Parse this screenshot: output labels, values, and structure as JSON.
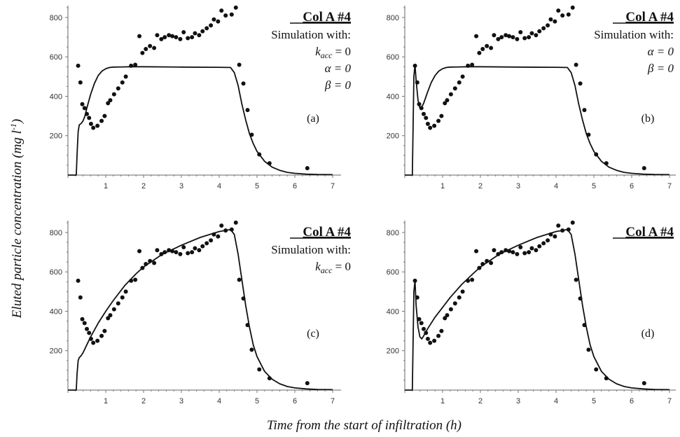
{
  "figure": {
    "xlabel": "Time from the start of infiltration (h)",
    "ylabel_main": "Eluted particle concentration (mg l",
    "ylabel_sup": "-1",
    "ylabel_close": ")"
  },
  "chart_data": [
    {
      "type": "scatter",
      "panel_label": "(a)",
      "title": "Col A #4",
      "annotations": [
        "Simulation with:",
        "k_acc = 0",
        "α = 0",
        "β = 0"
      ],
      "x_ticks": [
        1,
        2,
        3,
        4,
        5,
        6,
        7
      ],
      "y_ticks": [
        200,
        400,
        600,
        800
      ],
      "xlim": [
        -0.1,
        7.2
      ],
      "ylim": [
        0,
        870
      ],
      "series": [
        {
          "role": "observed",
          "x": [
            0.27,
            0.33,
            0.38,
            0.44,
            0.5,
            0.56,
            0.61,
            0.67,
            0.78,
            0.89,
            0.97,
            1.06,
            1.12,
            1.22,
            1.33,
            1.44,
            1.53,
            1.67,
            1.78,
            1.89,
            1.97,
            2.06,
            2.17,
            2.28,
            2.36,
            2.47,
            2.56,
            2.67,
            2.76,
            2.86,
            2.97,
            3.06,
            3.17,
            3.28,
            3.36,
            3.47,
            3.56,
            3.67,
            3.78,
            3.86,
            3.97,
            4.06,
            4.17,
            4.33,
            4.44,
            4.53,
            4.64,
            4.75,
            4.86,
            5.06,
            5.33,
            6.33
          ],
          "y": [
            555,
            470,
            360,
            340,
            310,
            290,
            260,
            240,
            250,
            275,
            300,
            365,
            380,
            410,
            440,
            470,
            500,
            555,
            560,
            705,
            620,
            640,
            655,
            645,
            710,
            690,
            700,
            710,
            705,
            700,
            690,
            725,
            695,
            700,
            720,
            710,
            730,
            745,
            760,
            790,
            780,
            835,
            810,
            815,
            850,
            560,
            465,
            330,
            205,
            105,
            60,
            35
          ]
        },
        {
          "role": "simulated",
          "x": [
            0,
            0.22,
            0.24,
            0.27,
            0.3,
            0.35,
            0.4,
            0.45,
            0.5,
            0.6,
            0.7,
            0.8,
            0.9,
            1.0,
            1.1,
            1.2,
            1.4,
            1.7,
            2.0,
            3.0,
            4.0,
            4.3,
            4.4,
            4.5,
            4.6,
            4.7,
            4.8,
            4.9,
            5.0,
            5.2,
            5.4,
            5.6,
            5.8,
            6.0,
            6.3,
            6.6,
            7.0
          ],
          "y": [
            0,
            0,
            100,
            220,
            255,
            262,
            275,
            300,
            340,
            410,
            465,
            505,
            528,
            540,
            546,
            548,
            549,
            550,
            550,
            548,
            547,
            546,
            520,
            455,
            360,
            280,
            210,
            160,
            120,
            70,
            40,
            24,
            14,
            9,
            5,
            3,
            2
          ]
        }
      ]
    },
    {
      "type": "scatter",
      "panel_label": "(b)",
      "title": "Col A #4",
      "annotations": [
        "Simulation with:",
        "α = 0",
        "β = 0"
      ],
      "x_ticks": [
        1,
        2,
        3,
        4,
        5,
        6,
        7
      ],
      "y_ticks": [
        200,
        400,
        600,
        800
      ],
      "xlim": [
        -0.1,
        7.2
      ],
      "ylim": [
        0,
        870
      ],
      "series": [
        {
          "role": "observed",
          "x": [
            0.27,
            0.33,
            0.38,
            0.44,
            0.5,
            0.56,
            0.61,
            0.67,
            0.78,
            0.89,
            0.97,
            1.06,
            1.12,
            1.22,
            1.33,
            1.44,
            1.53,
            1.67,
            1.78,
            1.89,
            1.97,
            2.06,
            2.17,
            2.28,
            2.36,
            2.47,
            2.56,
            2.67,
            2.76,
            2.86,
            2.97,
            3.06,
            3.17,
            3.28,
            3.36,
            3.47,
            3.56,
            3.67,
            3.78,
            3.86,
            3.97,
            4.06,
            4.17,
            4.33,
            4.44,
            4.53,
            4.64,
            4.75,
            4.86,
            5.06,
            5.33,
            6.33
          ],
          "y": [
            555,
            470,
            360,
            340,
            310,
            290,
            260,
            240,
            250,
            275,
            300,
            365,
            380,
            410,
            440,
            470,
            500,
            555,
            560,
            705,
            620,
            640,
            655,
            645,
            710,
            690,
            700,
            710,
            705,
            700,
            690,
            725,
            695,
            700,
            720,
            710,
            730,
            745,
            760,
            790,
            780,
            835,
            810,
            815,
            850,
            560,
            465,
            330,
            205,
            105,
            60,
            35
          ]
        },
        {
          "role": "simulated",
          "x": [
            0,
            0.2,
            0.22,
            0.24,
            0.27,
            0.3,
            0.35,
            0.4,
            0.45,
            0.5,
            0.6,
            0.7,
            0.8,
            0.9,
            1.0,
            1.1,
            1.2,
            1.4,
            1.7,
            2.0,
            3.0,
            4.0,
            4.3,
            4.4,
            4.5,
            4.6,
            4.7,
            4.8,
            4.9,
            5.0,
            5.2,
            5.4,
            5.6,
            5.8,
            6.0,
            6.3,
            6.6,
            7.0
          ],
          "y": [
            0,
            0,
            250,
            500,
            560,
            480,
            380,
            340,
            345,
            365,
            420,
            470,
            505,
            528,
            540,
            546,
            548,
            549,
            550,
            550,
            548,
            547,
            546,
            520,
            455,
            360,
            280,
            210,
            160,
            120,
            70,
            40,
            24,
            14,
            9,
            5,
            3,
            2
          ]
        }
      ]
    },
    {
      "type": "scatter",
      "panel_label": "(c)",
      "title": "Col A #4",
      "annotations": [
        "Simulation with:",
        "k_acc = 0"
      ],
      "x_ticks": [
        1,
        2,
        3,
        4,
        5,
        6,
        7
      ],
      "y_ticks": [
        200,
        400,
        600,
        800
      ],
      "xlim": [
        -0.1,
        7.2
      ],
      "ylim": [
        0,
        870
      ],
      "series": [
        {
          "role": "observed",
          "x": [
            0.27,
            0.33,
            0.38,
            0.44,
            0.5,
            0.56,
            0.61,
            0.67,
            0.78,
            0.89,
            0.97,
            1.06,
            1.12,
            1.22,
            1.33,
            1.44,
            1.53,
            1.67,
            1.78,
            1.89,
            1.97,
            2.06,
            2.17,
            2.28,
            2.36,
            2.47,
            2.56,
            2.67,
            2.76,
            2.86,
            2.97,
            3.06,
            3.17,
            3.28,
            3.36,
            3.47,
            3.56,
            3.67,
            3.78,
            3.86,
            3.97,
            4.06,
            4.17,
            4.33,
            4.44,
            4.53,
            4.64,
            4.75,
            4.86,
            5.06,
            5.33,
            6.33
          ],
          "y": [
            555,
            470,
            360,
            340,
            310,
            290,
            260,
            240,
            250,
            275,
            300,
            365,
            380,
            410,
            440,
            470,
            500,
            555,
            560,
            705,
            620,
            640,
            655,
            645,
            710,
            690,
            700,
            710,
            705,
            700,
            690,
            725,
            695,
            700,
            720,
            710,
            730,
            745,
            760,
            790,
            780,
            835,
            810,
            815,
            850,
            560,
            465,
            330,
            205,
            105,
            60,
            35
          ]
        },
        {
          "role": "simulated",
          "x": [
            0,
            0.22,
            0.24,
            0.27,
            0.3,
            0.35,
            0.4,
            0.5,
            0.6,
            0.8,
            1.0,
            1.2,
            1.5,
            1.8,
            2.0,
            2.5,
            3.0,
            3.5,
            4.0,
            4.3,
            4.4,
            4.5,
            4.6,
            4.7,
            4.8,
            4.9,
            5.0,
            5.2,
            5.4,
            5.6,
            5.8,
            6.0,
            6.3,
            6.6,
            7.0
          ],
          "y": [
            0,
            0,
            80,
            150,
            165,
            175,
            190,
            230,
            270,
            340,
            400,
            455,
            530,
            590,
            625,
            690,
            735,
            775,
            805,
            815,
            790,
            690,
            560,
            430,
            320,
            230,
            170,
            95,
            55,
            32,
            18,
            11,
            6,
            3,
            2
          ]
        }
      ]
    },
    {
      "type": "scatter",
      "panel_label": "(d)",
      "title": "Col A #4",
      "annotations": [],
      "x_ticks": [
        1,
        2,
        3,
        4,
        5,
        6,
        7
      ],
      "y_ticks": [
        200,
        400,
        600,
        800
      ],
      "xlim": [
        -0.1,
        7.2
      ],
      "ylim": [
        0,
        870
      ],
      "series": [
        {
          "role": "observed",
          "x": [
            0.27,
            0.33,
            0.38,
            0.44,
            0.5,
            0.56,
            0.61,
            0.67,
            0.78,
            0.89,
            0.97,
            1.06,
            1.12,
            1.22,
            1.33,
            1.44,
            1.53,
            1.67,
            1.78,
            1.89,
            1.97,
            2.06,
            2.17,
            2.28,
            2.36,
            2.47,
            2.56,
            2.67,
            2.76,
            2.86,
            2.97,
            3.06,
            3.17,
            3.28,
            3.36,
            3.47,
            3.56,
            3.67,
            3.78,
            3.86,
            3.97,
            4.06,
            4.17,
            4.33,
            4.44,
            4.53,
            4.64,
            4.75,
            4.86,
            5.06,
            5.33,
            6.33
          ],
          "y": [
            555,
            470,
            360,
            340,
            310,
            290,
            260,
            240,
            250,
            275,
            300,
            365,
            380,
            410,
            440,
            470,
            500,
            555,
            560,
            705,
            620,
            640,
            655,
            645,
            710,
            690,
            700,
            710,
            705,
            700,
            690,
            725,
            695,
            700,
            720,
            710,
            730,
            745,
            760,
            790,
            780,
            835,
            810,
            815,
            850,
            560,
            465,
            330,
            205,
            105,
            60,
            35
          ]
        },
        {
          "role": "simulated",
          "x": [
            0,
            0.2,
            0.22,
            0.24,
            0.27,
            0.3,
            0.35,
            0.4,
            0.45,
            0.5,
            0.6,
            0.8,
            1.0,
            1.2,
            1.5,
            1.8,
            2.0,
            2.5,
            3.0,
            3.5,
            4.0,
            4.3,
            4.4,
            4.5,
            4.6,
            4.7,
            4.8,
            4.9,
            5.0,
            5.2,
            5.4,
            5.6,
            5.8,
            6.0,
            6.3,
            6.6,
            7.0
          ],
          "y": [
            0,
            0,
            250,
            500,
            555,
            430,
            320,
            270,
            260,
            275,
            310,
            370,
            420,
            470,
            535,
            590,
            625,
            690,
            735,
            775,
            805,
            815,
            790,
            690,
            560,
            430,
            320,
            230,
            170,
            95,
            55,
            32,
            18,
            11,
            6,
            3,
            2
          ]
        }
      ]
    }
  ]
}
